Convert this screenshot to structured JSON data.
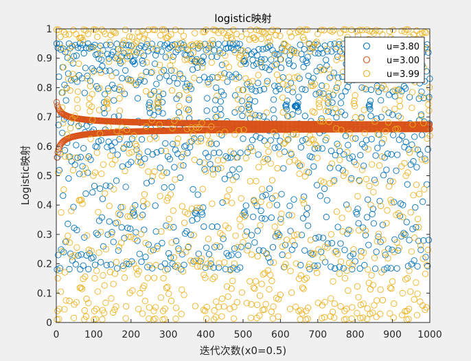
{
  "chart_data": {
    "type": "scatter",
    "title": "logistic映射",
    "xlabel": "迭代次数(x0=0.5)",
    "ylabel": "Logistic映射",
    "xlim": [
      0,
      1000
    ],
    "ylim": [
      0,
      1
    ],
    "x_ticks": [
      "0",
      "100",
      "200",
      "300",
      "400",
      "500",
      "600",
      "700",
      "800",
      "900",
      "1000"
    ],
    "y_ticks": [
      "0",
      "0.1",
      "0.2",
      "0.3",
      "0.4",
      "0.5",
      "0.6",
      "0.7",
      "0.8",
      "0.9",
      "1"
    ],
    "x0": 0.5,
    "n_iterations": 1000,
    "marker": "open-circle",
    "grid": false,
    "legend_position": "top-right",
    "series": [
      {
        "name": "u=3.80",
        "r": 3.8,
        "color": "#0072BD"
      },
      {
        "name": "u=3.00",
        "r": 3.0,
        "color": "#D95319"
      },
      {
        "name": "u=3.99",
        "r": 3.99,
        "color": "#EDB120"
      }
    ]
  }
}
